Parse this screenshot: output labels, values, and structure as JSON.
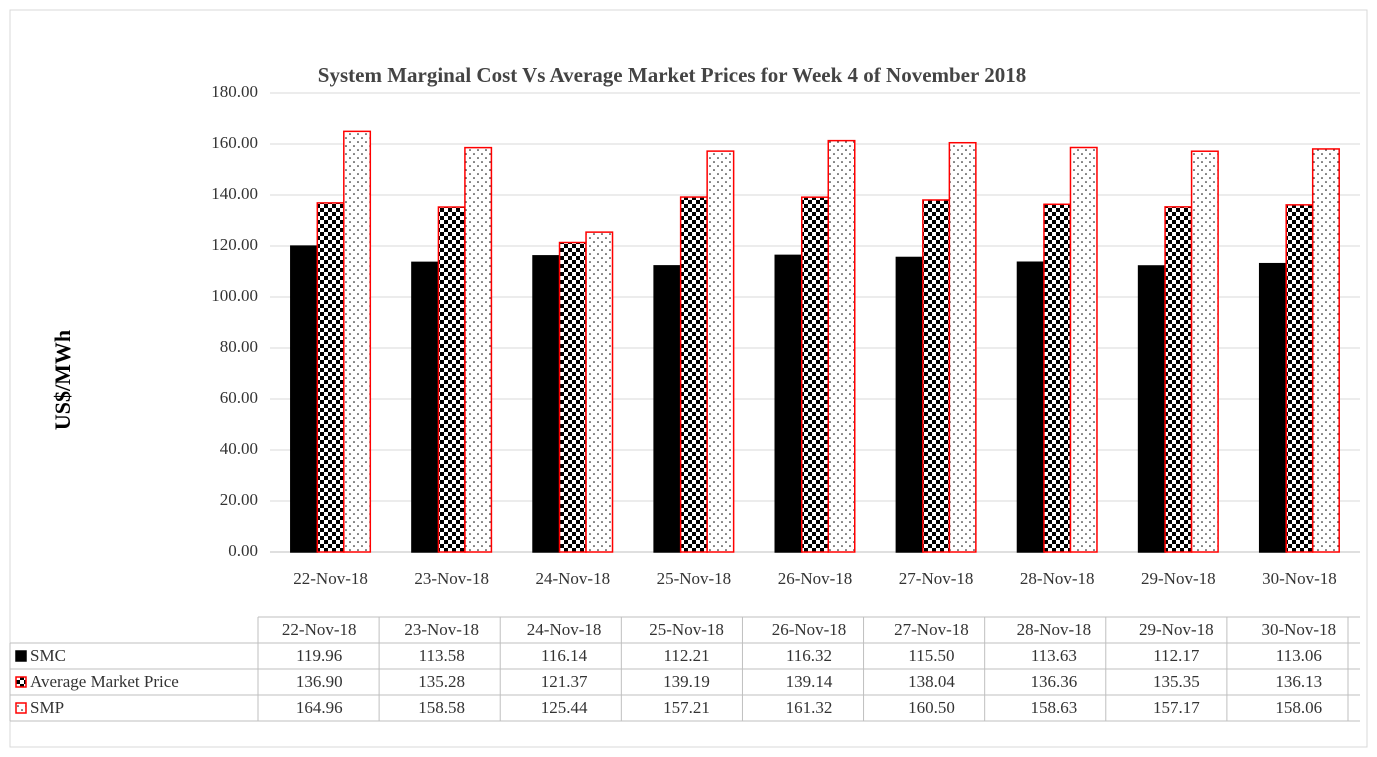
{
  "chart_data": {
    "type": "bar",
    "title": "System Marginal Cost Vs Average Market Prices for Week 4 of  November 2018",
    "y_label": "US$/MWh",
    "categories": [
      "22-Nov-18",
      "23-Nov-18",
      "24-Nov-18",
      "25-Nov-18",
      "26-Nov-18",
      "27-Nov-18",
      "28-Nov-18",
      "29-Nov-18",
      "30-Nov-18"
    ],
    "series": [
      {
        "name": "SMC",
        "color": "#000000",
        "fill": "solid",
        "values": [
          119.96,
          113.58,
          116.14,
          112.21,
          116.32,
          115.5,
          113.63,
          112.17,
          113.06
        ],
        "value_labels": [
          "119.96",
          "113.58",
          "116.14",
          "112.21",
          "116.32",
          "115.50",
          "113.63",
          "112.17",
          "113.06"
        ]
      },
      {
        "name": "Average Market Price",
        "color": "#ff0000",
        "fill": "checker",
        "values": [
          136.9,
          135.28,
          121.37,
          139.19,
          139.14,
          138.04,
          136.36,
          135.35,
          136.13
        ],
        "value_labels": [
          "136.90",
          "135.28",
          "121.37",
          "139.19",
          "139.14",
          "138.04",
          "136.36",
          "135.35",
          "136.13"
        ]
      },
      {
        "name": "SMP",
        "color": "#ff0000",
        "fill": "dots",
        "values": [
          164.96,
          158.58,
          125.44,
          157.21,
          161.32,
          160.5,
          158.63,
          157.17,
          158.06
        ],
        "value_labels": [
          "164.96",
          "158.58",
          "125.44",
          "157.21",
          "161.32",
          "160.50",
          "158.63",
          "157.17",
          "158.06"
        ]
      }
    ],
    "ylim": [
      0,
      180
    ],
    "yticks": [
      {
        "value": 0,
        "label": "0.00"
      },
      {
        "value": 20,
        "label": "20.00"
      },
      {
        "value": 40,
        "label": "40.00"
      },
      {
        "value": 60,
        "label": "60.00"
      },
      {
        "value": 80,
        "label": "80.00"
      },
      {
        "value": 100,
        "label": "100.00"
      },
      {
        "value": 120,
        "label": "120.00"
      },
      {
        "value": 140,
        "label": "140.00"
      },
      {
        "value": 160,
        "label": "160.00"
      },
      {
        "value": 180,
        "label": "180.00"
      }
    ],
    "grid": true
  }
}
